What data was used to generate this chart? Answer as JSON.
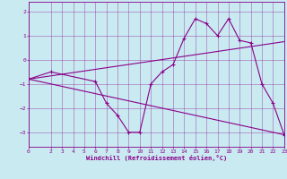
{
  "xlabel": "Windchill (Refroidissement éolien,°C)",
  "background_color": "#c8eaf0",
  "line_color": "#8b008b",
  "xlim": [
    0,
    23
  ],
  "ylim": [
    -3.6,
    2.4
  ],
  "yticks": [
    -3,
    -2,
    -1,
    0,
    1,
    2
  ],
  "xticks": [
    0,
    2,
    3,
    4,
    5,
    6,
    7,
    8,
    9,
    10,
    11,
    12,
    13,
    14,
    15,
    16,
    17,
    18,
    19,
    20,
    21,
    22,
    23
  ],
  "series": [
    {
      "x": [
        0,
        2,
        6,
        7,
        8,
        9,
        10,
        11,
        12,
        13,
        14,
        15,
        16,
        17,
        18,
        19,
        20,
        21,
        22,
        23
      ],
      "y": [
        -0.8,
        -0.5,
        -0.9,
        -1.8,
        -2.3,
        -3.0,
        -3.0,
        -1.0,
        -0.5,
        -0.2,
        0.9,
        1.7,
        1.5,
        1.0,
        1.7,
        0.8,
        0.7,
        -1.0,
        -1.8,
        -3.1
      ]
    },
    {
      "x": [
        0,
        23
      ],
      "y": [
        -0.8,
        0.75
      ]
    },
    {
      "x": [
        0,
        23
      ],
      "y": [
        -0.8,
        -3.1
      ]
    }
  ]
}
